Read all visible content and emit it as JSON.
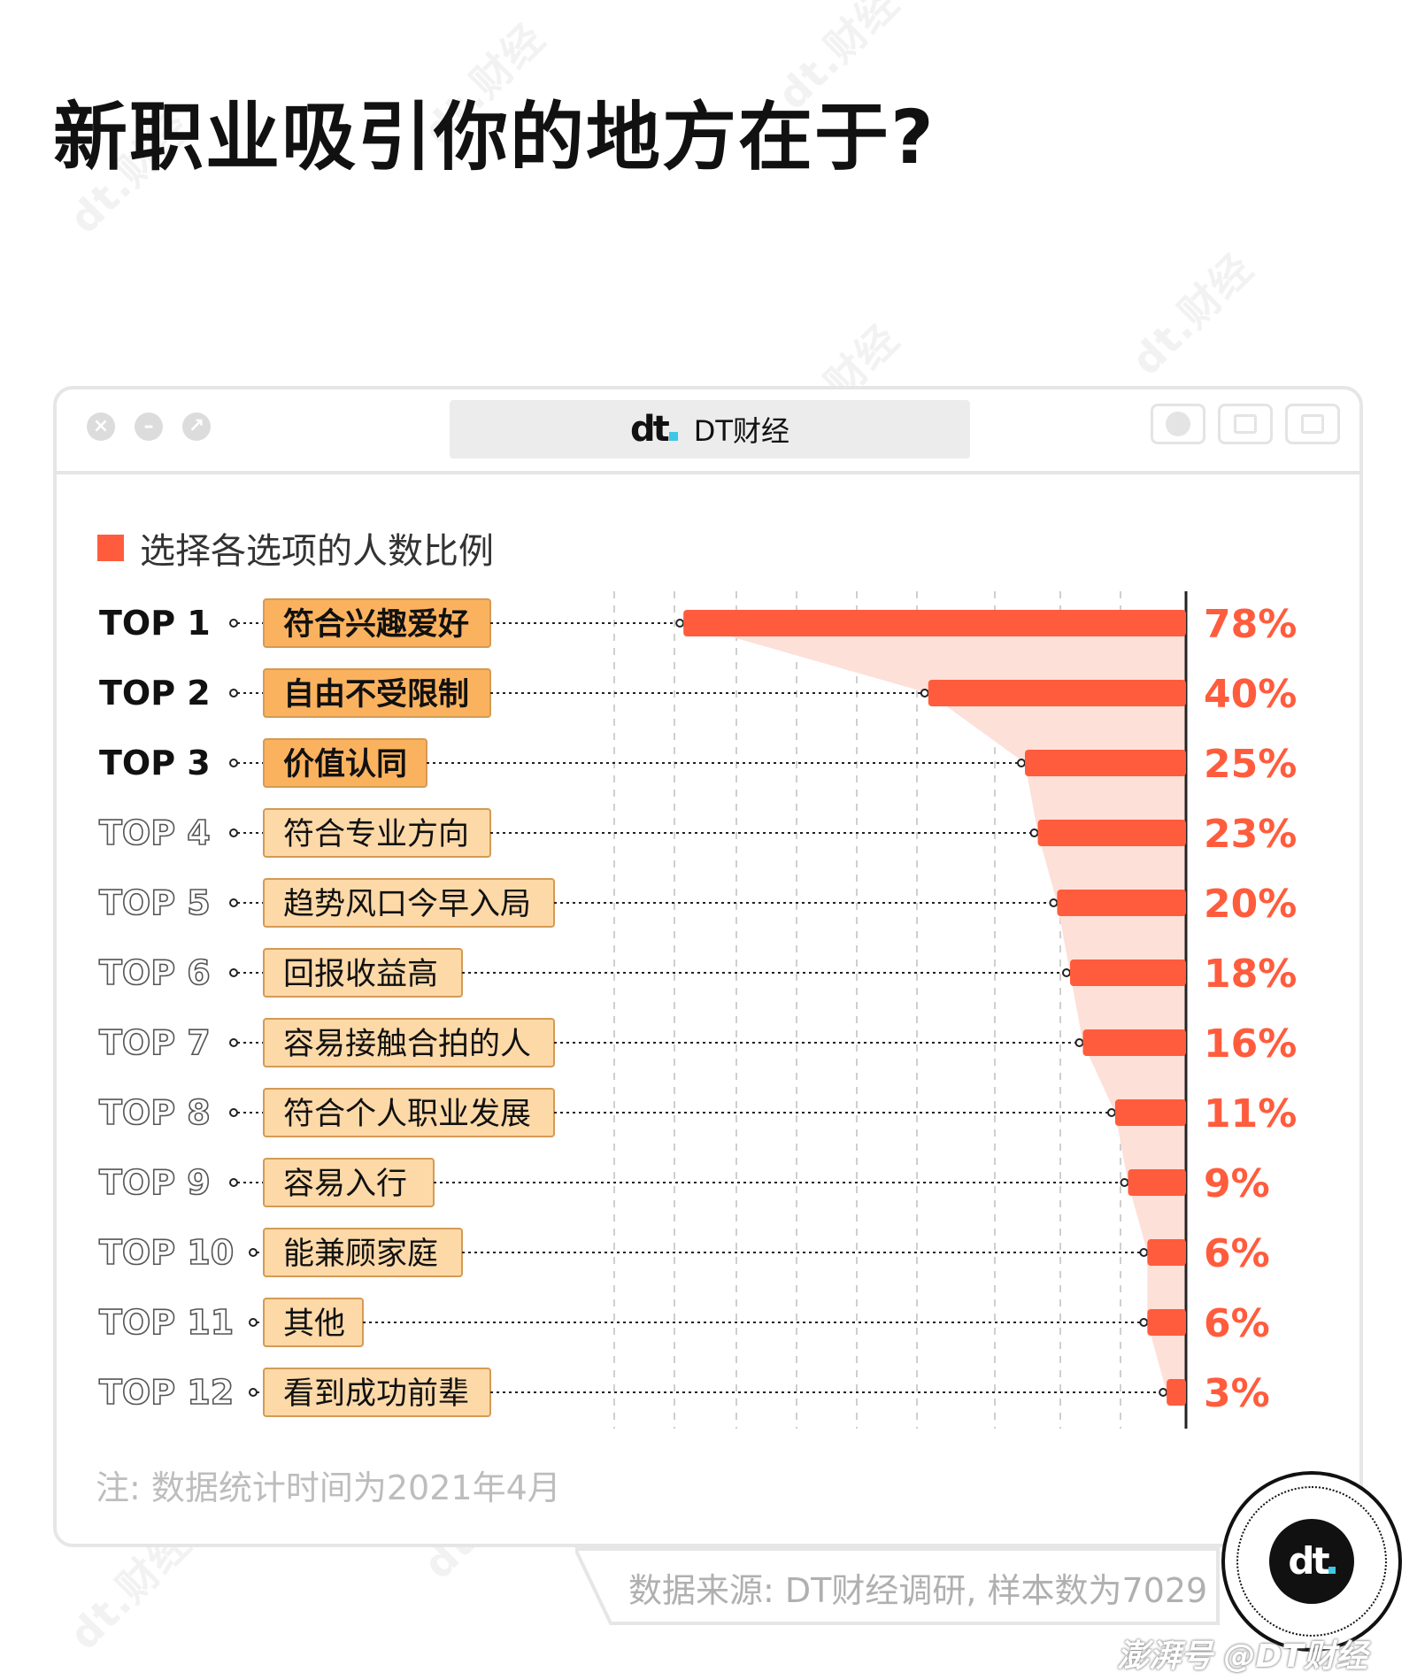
{
  "page_title": "新职业吸引你的地方在于?",
  "window": {
    "brand_name": "DT财经"
  },
  "legend_label": "选择各选项的人数比例",
  "note": "注: 数据统计时间为2021年4月",
  "source": "数据来源: DT财经调研, 样本数为7029",
  "footer_sign": "澎湃号 @DT财经",
  "watermark_text": "dt.财经",
  "colors": {
    "bar": "#ff5c3d",
    "area": "#fde0d8",
    "label_top3": "#fbb25f",
    "label_other": "#fdd9a8",
    "label_border": "#d59a55",
    "value": "#ff5c3d"
  },
  "chart_data": {
    "type": "bar",
    "title": "",
    "series": [
      {
        "name": "选择各选项的人数比例"
      }
    ],
    "ranks": [
      "TOP 1",
      "TOP 2",
      "TOP 3",
      "TOP 4",
      "TOP 5",
      "TOP 6",
      "TOP 7",
      "TOP 8",
      "TOP 9",
      "TOP 10",
      "TOP 11",
      "TOP 12"
    ],
    "categories": [
      "符合兴趣爱好",
      "自由不受限制",
      "价值认同",
      "符合专业方向",
      "趋势风口今早入局",
      "回报收益高",
      "容易接触合拍的人",
      "符合个人职业发展",
      "容易入行",
      "能兼顾家庭",
      "其他",
      "看到成功前辈"
    ],
    "values": [
      78,
      40,
      25,
      23,
      20,
      18,
      16,
      11,
      9,
      6,
      6,
      3
    ],
    "value_labels": [
      "78%",
      "40%",
      "25%",
      "23%",
      "20%",
      "18%",
      "16%",
      "11%",
      "9%",
      "6%",
      "6%",
      "3%"
    ],
    "highlight_top": 3,
    "orientation": "horizontal, bars extend leftward from right baseline",
    "xlim": [
      0,
      80
    ],
    "grid": true
  }
}
